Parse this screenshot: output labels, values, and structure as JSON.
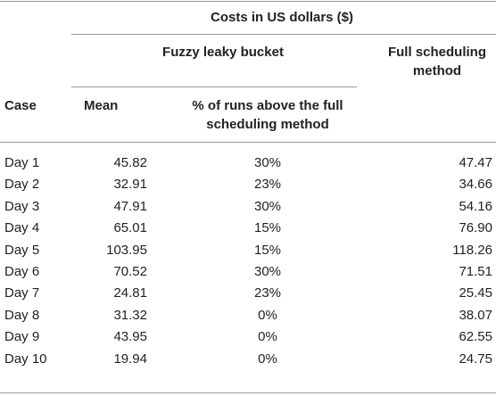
{
  "header": {
    "group_title": "Costs in US dollars ($)",
    "fuzzy_title": "Fuzzy leaky bucket",
    "full_title_line1": "Full scheduling",
    "full_title_line2": "method",
    "case_label": "Case",
    "mean_label": "Mean",
    "pct_label_line1": "% of runs above the full",
    "pct_label_line2": "scheduling method"
  },
  "rows": [
    {
      "case": "Day 1",
      "mean": "45.82",
      "pct": "30%",
      "full": "47.47"
    },
    {
      "case": "Day 2",
      "mean": "32.91",
      "pct": "23%",
      "full": "34.66"
    },
    {
      "case": "Day 3",
      "mean": "47.91",
      "pct": "30%",
      "full": "54.16"
    },
    {
      "case": "Day 4",
      "mean": "65.01",
      "pct": "15%",
      "full": "76.90"
    },
    {
      "case": "Day 5",
      "mean": "103.95",
      "pct": "15%",
      "full": "118.26"
    },
    {
      "case": "Day 6",
      "mean": "70.52",
      "pct": "30%",
      "full": "71.51"
    },
    {
      "case": "Day 7",
      "mean": "24.81",
      "pct": "23%",
      "full": "25.45"
    },
    {
      "case": "Day 8",
      "mean": "31.32",
      "pct": "0%",
      "full": "38.07"
    },
    {
      "case": "Day 9",
      "mean": "43.95",
      "pct": "0%",
      "full": "62.55"
    },
    {
      "case": "Day 10",
      "mean": "19.94",
      "pct": "0%",
      "full": "24.75"
    }
  ]
}
